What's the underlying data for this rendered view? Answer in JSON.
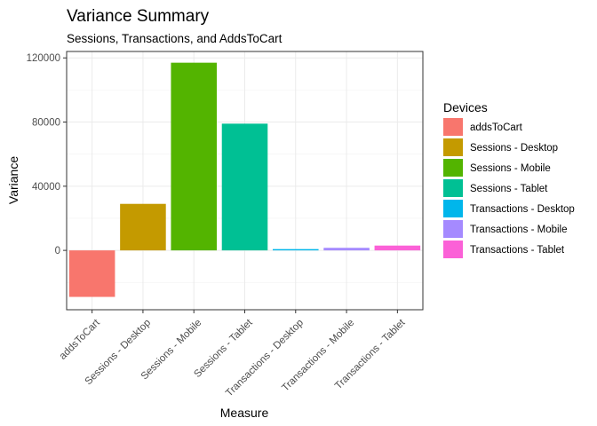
{
  "chart_data": {
    "type": "bar",
    "title": "Variance Summary",
    "subtitle": "Sessions, Transactions, and AddsToCart",
    "xlabel": "Measure",
    "ylabel": "Variance",
    "categories": [
      "addsToCart",
      "Sessions - Desktop",
      "Sessions - Mobile",
      "Sessions - Tablet",
      "Transactions - Desktop",
      "Transactions - Mobile",
      "Transactions - Tablet"
    ],
    "values": [
      -29000,
      29000,
      117000,
      79000,
      800,
      1600,
      3000
    ],
    "colors": [
      "#F8766D",
      "#C49A00",
      "#53B400",
      "#00C094",
      "#00B6EB",
      "#A58AFF",
      "#FB61D7"
    ],
    "ylim": [
      -37000,
      124000
    ],
    "yticks": [
      0,
      40000,
      80000,
      120000
    ],
    "grid": true,
    "legend": {
      "title": "Devices",
      "position": "right",
      "entries": [
        "addsToCart",
        "Sessions - Desktop",
        "Sessions - Mobile",
        "Sessions - Tablet",
        "Transactions - Desktop",
        "Transactions - Mobile",
        "Transactions - Tablet"
      ]
    }
  }
}
